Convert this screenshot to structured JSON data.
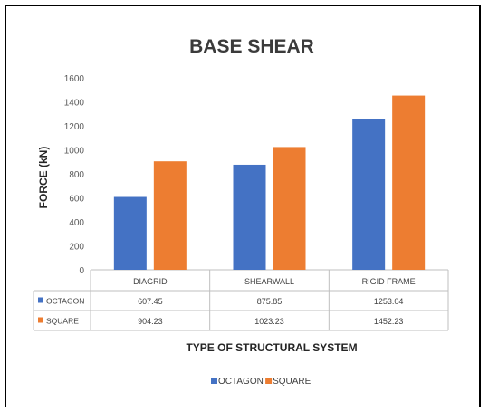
{
  "chart_data": {
    "type": "bar",
    "title": "BASE SHEAR",
    "xlabel": "TYPE OF STRUCTURAL SYSTEM",
    "ylabel": "FORCE (kN)",
    "categories": [
      "DIAGRID",
      "SHEARWALL",
      "RIGID FRAME"
    ],
    "series": [
      {
        "name": "OCTAGON",
        "values": [
          607.45,
          875.85,
          1253.04
        ],
        "labels": [
          "607.45",
          "875.85",
          "1253.04"
        ],
        "color": "#4472c4"
      },
      {
        "name": "SQUARE",
        "values": [
          904.23,
          1023.23,
          1452.23
        ],
        "labels": [
          "904.23",
          "1023.23",
          "1452.23"
        ],
        "color": "#ed7d31"
      }
    ],
    "ylim": [
      0,
      1600
    ],
    "yticks": [
      "0",
      "200",
      "400",
      "600",
      "800",
      "1000",
      "1200",
      "1400",
      "1600"
    ],
    "grid": false,
    "legend": "bottom",
    "data_table": true
  }
}
